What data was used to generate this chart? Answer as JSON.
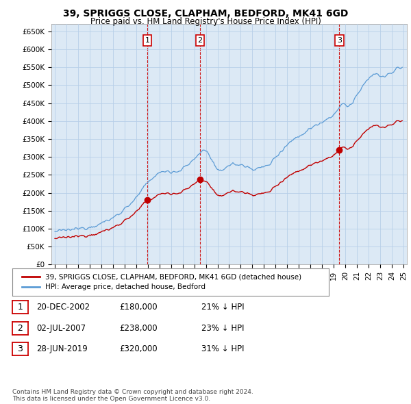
{
  "title": "39, SPRIGGS CLOSE, CLAPHAM, BEDFORD, MK41 6GD",
  "subtitle": "Price paid vs. HM Land Registry's House Price Index (HPI)",
  "ylabel_ticks": [
    "£0",
    "£50K",
    "£100K",
    "£150K",
    "£200K",
    "£250K",
    "£300K",
    "£350K",
    "£400K",
    "£450K",
    "£500K",
    "£550K",
    "£600K",
    "£650K"
  ],
  "ytick_values": [
    0,
    50000,
    100000,
    150000,
    200000,
    250000,
    300000,
    350000,
    400000,
    450000,
    500000,
    550000,
    600000,
    650000
  ],
  "hpi_color": "#5b9bd5",
  "price_color": "#c00000",
  "vline_color": "#cc0000",
  "purchases": [
    {
      "t": 2002.96,
      "price": 180000,
      "label": "1"
    },
    {
      "t": 2007.5,
      "price": 238000,
      "label": "2"
    },
    {
      "t": 2019.49,
      "price": 320000,
      "label": "3"
    }
  ],
  "legend_entries": [
    "39, SPRIGGS CLOSE, CLAPHAM, BEDFORD, MK41 6GD (detached house)",
    "HPI: Average price, detached house, Bedford"
  ],
  "table_rows": [
    [
      "1",
      "20-DEC-2002",
      "£180,000",
      "21% ↓ HPI"
    ],
    [
      "2",
      "02-JUL-2007",
      "£238,000",
      "23% ↓ HPI"
    ],
    [
      "3",
      "28-JUN-2019",
      "£320,000",
      "31% ↓ HPI"
    ]
  ],
  "footer": "Contains HM Land Registry data © Crown copyright and database right 2024.\nThis data is licensed under the Open Government Licence v3.0.",
  "xlim_start": 1994.7,
  "xlim_end": 2025.3,
  "ylim": [
    0,
    670000
  ],
  "bg_color": "#ffffff",
  "plot_bg_color": "#dce9f5",
  "grid_color": "#b8cfe8"
}
